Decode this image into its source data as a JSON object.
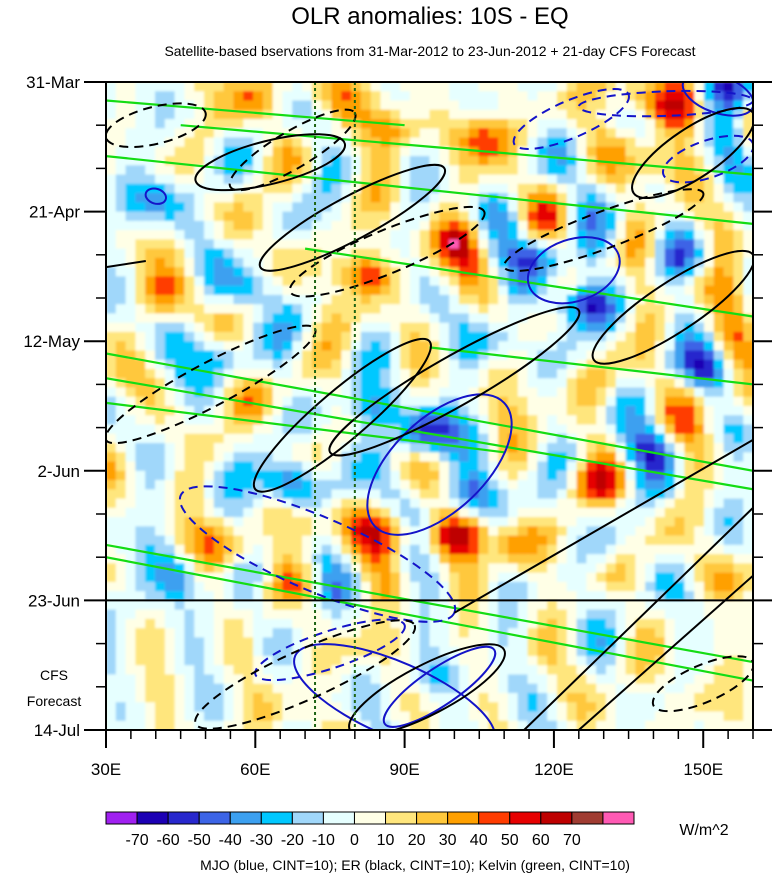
{
  "chart_data": {
    "type": "heatmap",
    "title": "OLR anomalies: 10S - EQ",
    "subtitle": "Satellite-based bservations from 31-Mar-2012 to 23-Jun-2012 + 21-day CFS Forecast",
    "xlabel": "",
    "ylabel": "",
    "x_range": [
      30,
      160
    ],
    "x_ticks": [
      {
        "value": 30,
        "label": "30E"
      },
      {
        "value": 60,
        "label": "60E"
      },
      {
        "value": 90,
        "label": "90E"
      },
      {
        "value": 120,
        "label": "120E"
      },
      {
        "value": 150,
        "label": "150E"
      }
    ],
    "y_range_days": [
      0,
      105
    ],
    "y_ticks": [
      {
        "day": 0,
        "label": "31-Mar"
      },
      {
        "day": 21,
        "label": "21-Apr"
      },
      {
        "day": 42,
        "label": "12-May"
      },
      {
        "day": 63,
        "label": "2-Jun"
      },
      {
        "day": 84,
        "label": "23-Jun"
      },
      {
        "day": 105,
        "label": "14-Jul"
      }
    ],
    "forecast_start_day": 84,
    "forecast_label": [
      "CFS",
      "Forecast"
    ],
    "reference_longitudes": [
      72,
      80
    ],
    "colorbar": {
      "unit": "W/m^2",
      "levels": [
        -70,
        -60,
        -50,
        -40,
        -30,
        -20,
        -10,
        0,
        10,
        20,
        30,
        40,
        50,
        60,
        70
      ],
      "labels": [
        "-70",
        "-60",
        "-50",
        "-40",
        "-30",
        "-20",
        "-10",
        "0",
        "10",
        "20",
        "30",
        "40",
        "50",
        "60",
        "70"
      ],
      "colors": [
        "#a020f0",
        "#1c00b4",
        "#2828cd",
        "#3c64e6",
        "#3ca0f0",
        "#00c8ff",
        "#a0d7fa",
        "#e6ffff",
        "#ffffe6",
        "#ffe67d",
        "#ffc83c",
        "#ffa000",
        "#ff3c00",
        "#e60000",
        "#be0000",
        "#a03c32",
        "#ff5ab4"
      ]
    },
    "contour_legend": "MJO (blue, CINT=10); ER (black, CINT=10); Kelvin (green, CINT=10)",
    "series_colors": {
      "MJO": "#1414c8",
      "ER": "#000000",
      "Kelvin": "#14dc14"
    },
    "features": {
      "negative_anomalies": [
        {
          "lon": 67,
          "day": 65,
          "value": -70
        },
        {
          "lon": 94,
          "day": 57,
          "value": -65
        },
        {
          "lon": 126,
          "day": 36,
          "value": -60
        },
        {
          "lon": 156,
          "day": 1,
          "value": -55
        },
        {
          "lon": 118,
          "day": 28,
          "value": -45
        },
        {
          "lon": 103,
          "day": 67,
          "value": -45
        },
        {
          "lon": 95,
          "day": 96,
          "value": -45
        },
        {
          "lon": 84,
          "day": 53,
          "value": -40
        },
        {
          "lon": 40,
          "day": 19,
          "value": -40
        },
        {
          "lon": 53,
          "day": 44,
          "value": -40
        },
        {
          "lon": 150,
          "day": 46,
          "value": -35
        },
        {
          "lon": 140,
          "day": 60,
          "value": -35
        },
        {
          "lon": 110,
          "day": 42,
          "value": -30
        },
        {
          "lon": 45,
          "day": 80,
          "value": -30
        },
        {
          "lon": 33,
          "day": 85,
          "value": -25
        },
        {
          "lon": 145,
          "day": 28,
          "value": -25
        },
        {
          "lon": 60,
          "day": 33,
          "value": -25
        },
        {
          "lon": 135,
          "day": 85,
          "value": -20
        }
      ],
      "positive_anomalies": [
        {
          "lon": 82,
          "day": 31,
          "value": 52
        },
        {
          "lon": 100,
          "day": 26,
          "value": 45
        },
        {
          "lon": 100,
          "day": 74,
          "value": 50
        },
        {
          "lon": 88,
          "day": 73,
          "value": 45
        },
        {
          "lon": 88,
          "day": 8,
          "value": 40
        },
        {
          "lon": 106,
          "day": 9,
          "value": 40
        },
        {
          "lon": 60,
          "day": 2,
          "value": 30
        },
        {
          "lon": 75,
          "day": 2,
          "value": 30
        },
        {
          "lon": 136,
          "day": 2,
          "value": 45
        },
        {
          "lon": 145,
          "day": 4,
          "value": 35
        },
        {
          "lon": 140,
          "day": 13,
          "value": 30
        },
        {
          "lon": 70,
          "day": 72,
          "value": 35
        },
        {
          "lon": 112,
          "day": 75,
          "value": 35
        },
        {
          "lon": 55,
          "day": 75,
          "value": 30
        },
        {
          "lon": 85,
          "day": 92,
          "value": 30
        },
        {
          "lon": 63,
          "day": 102,
          "value": 25
        },
        {
          "lon": 148,
          "day": 100,
          "value": 25
        },
        {
          "lon": 135,
          "day": 95,
          "value": 20
        },
        {
          "lon": 155,
          "day": 52,
          "value": 30
        },
        {
          "lon": 128,
          "day": 65,
          "value": 25
        },
        {
          "lon": 150,
          "day": 33,
          "value": 20
        },
        {
          "lon": 40,
          "day": 35,
          "value": 25
        },
        {
          "lon": 58,
          "day": 52,
          "value": 20
        },
        {
          "lon": 118,
          "day": 50,
          "value": 20
        },
        {
          "lon": 155,
          "day": 80,
          "value": 25
        }
      ]
    },
    "contours": {
      "MJO": [
        {
          "lon0": 84,
          "day0": 72,
          "lon1": 110,
          "day1": 52,
          "halfwidth": 7.5,
          "dash": false
        },
        {
          "lon0": 68,
          "day0": 93,
          "lon1": 108,
          "day1": 107,
          "halfwidth": 6,
          "dash": false
        },
        {
          "lon0": 86,
          "day0": 104,
          "lon1": 108,
          "day1": 92,
          "halfwidth": 3,
          "dash": false
        },
        {
          "lon0": 115,
          "day0": 33,
          "lon1": 133,
          "day1": 28,
          "halfwidth": 5,
          "dash": false
        },
        {
          "lon0": 146,
          "day0": 0,
          "lon1": 160,
          "day1": 4,
          "halfwidth": 3,
          "dash": false
        },
        {
          "lon0": 45,
          "day0": 67,
          "lon1": 100,
          "day1": 86,
          "halfwidth": 6,
          "dash": true
        },
        {
          "lon0": 60,
          "day0": 96,
          "lon1": 90,
          "day1": 88,
          "halfwidth": 3,
          "dash": true
        },
        {
          "lon0": 112,
          "day0": 10,
          "lon1": 135,
          "day1": 2,
          "halfwidth": 3,
          "dash": true
        },
        {
          "lon0": 125,
          "day0": 4,
          "lon1": 160,
          "day1": 3,
          "halfwidth": 2,
          "dash": true
        },
        {
          "lon0": 142,
          "day0": 15,
          "lon1": 160,
          "day1": 10,
          "halfwidth": 3,
          "dash": true
        },
        {
          "lon0": 38,
          "day0": 18,
          "lon1": 42,
          "day1": 19,
          "halfwidth": 1.2,
          "dash": false
        }
      ],
      "ER": [
        {
          "lon0": 48,
          "day0": 16,
          "lon1": 78,
          "day1": 10,
          "halfwidth": 3.5,
          "dash": false
        },
        {
          "lon0": 61,
          "day0": 30,
          "lon1": 98,
          "day1": 14,
          "halfwidth": 3.5,
          "dash": false
        },
        {
          "lon0": 75,
          "day0": 60,
          "lon1": 125,
          "day1": 37,
          "halfwidth": 4,
          "dash": false
        },
        {
          "lon0": 60,
          "day0": 66,
          "lon1": 95,
          "day1": 42,
          "halfwidth": 4,
          "dash": false
        },
        {
          "lon0": 128,
          "day0": 45,
          "lon1": 160,
          "day1": 28,
          "halfwidth": 4,
          "dash": false
        },
        {
          "lon0": 136,
          "day0": 18,
          "lon1": 160,
          "day1": 5,
          "halfwidth": 4,
          "dash": false
        },
        {
          "lon0": 79,
          "day0": 105,
          "lon1": 110,
          "day1": 92,
          "halfwidth": 4,
          "dash": false
        },
        {
          "lon0": 55,
          "day0": 17,
          "lon1": 80,
          "day1": 5,
          "halfwidth": 3,
          "dash": true
        },
        {
          "lon0": 67,
          "day0": 34,
          "lon1": 106,
          "day1": 21,
          "halfwidth": 3.5,
          "dash": true
        },
        {
          "lon0": 30,
          "day0": 58,
          "lon1": 72,
          "day1": 40,
          "halfwidth": 3.5,
          "dash": true
        },
        {
          "lon0": 110,
          "day0": 30,
          "lon1": 150,
          "day1": 18,
          "halfwidth": 3,
          "dash": true
        },
        {
          "lon0": 48,
          "day0": 104,
          "lon1": 92,
          "day1": 88,
          "halfwidth": 4,
          "dash": true
        },
        {
          "lon0": 140,
          "day0": 101,
          "lon1": 160,
          "day1": 94,
          "halfwidth": 3,
          "dash": true
        },
        {
          "lon0": 30,
          "day0": 9,
          "lon1": 50,
          "day1": 5,
          "halfwidth": 3,
          "dash": true
        }
      ],
      "ER_lines": [
        {
          "lon0": 114,
          "day0": 105,
          "lon1": 160,
          "day1": 69,
          "dash": false
        },
        {
          "lon0": 125,
          "day0": 105,
          "lon1": 160,
          "day1": 80,
          "dash": false
        },
        {
          "lon0": 100,
          "day0": 86,
          "lon1": 160,
          "day1": 58,
          "dash": false
        },
        {
          "lon0": 30,
          "day0": 30,
          "lon1": 38,
          "day1": 29,
          "dash": false
        }
      ],
      "Kelvin": [
        {
          "lon0": 30,
          "day0": 44,
          "lon1": 160,
          "day1": 63,
          "dash": false
        },
        {
          "lon0": 30,
          "day0": 48,
          "lon1": 160,
          "day1": 66,
          "dash": false
        },
        {
          "lon0": 30,
          "day0": 75,
          "lon1": 160,
          "day1": 94,
          "dash": false
        },
        {
          "lon0": 30,
          "day0": 77,
          "lon1": 160,
          "day1": 97,
          "dash": false
        },
        {
          "lon0": 30,
          "day0": 12,
          "lon1": 160,
          "day1": 23,
          "dash": false
        },
        {
          "lon0": 45,
          "day0": 7,
          "lon1": 160,
          "day1": 15,
          "dash": false
        },
        {
          "lon0": 30,
          "day0": 3,
          "lon1": 90,
          "day1": 7,
          "dash": false
        },
        {
          "lon0": 70,
          "day0": 27,
          "lon1": 160,
          "day1": 38,
          "dash": false
        },
        {
          "lon0": 95,
          "day0": 43,
          "lon1": 160,
          "day1": 49,
          "dash": false
        },
        {
          "lon0": 30,
          "day0": 52,
          "lon1": 110,
          "day1": 60,
          "dash": false
        }
      ]
    }
  }
}
